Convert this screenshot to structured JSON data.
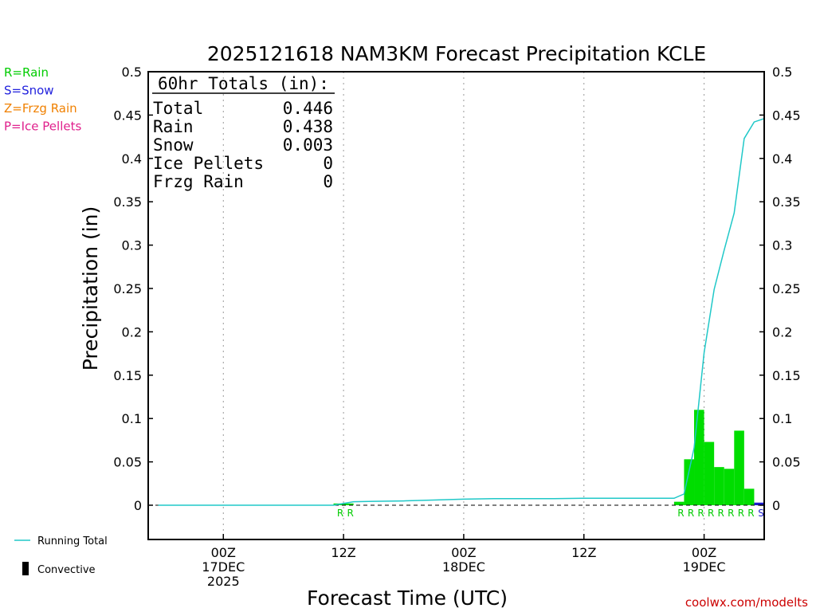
{
  "chart_data": {
    "type": "bar",
    "title": "2025121618 NAM3KM Forecast Precipitation KCLE",
    "xlabel": "Forecast Time (UTC)",
    "ylabel": "Precipitation (in)",
    "ylim": [
      -0.04,
      0.5
    ],
    "y_ticks": [
      0,
      0.05,
      0.1,
      0.15,
      0.2,
      0.25,
      0.3,
      0.35,
      0.4,
      0.45,
      0.5
    ],
    "y_tick_labels": [
      "0",
      "0.05",
      "0.1",
      "0.15",
      "0.2",
      "0.25",
      "0.3",
      "0.35",
      "0.4",
      "0.45",
      "0.5"
    ],
    "x_unit": "forecast hour",
    "xlim": [
      -1.5,
      60
    ],
    "x_ticks": [
      {
        "hour": 6,
        "lines": [
          "00Z",
          "17DEC",
          "2025"
        ]
      },
      {
        "hour": 18,
        "lines": [
          "12Z"
        ]
      },
      {
        "hour": 30,
        "lines": [
          "00Z",
          "18DEC"
        ]
      },
      {
        "hour": 42,
        "lines": [
          "12Z"
        ]
      },
      {
        "hour": 54,
        "lines": [
          "00Z",
          "19DEC"
        ]
      }
    ],
    "grid": "vertical dotted at x ticks",
    "series": [
      {
        "name": "Running Total",
        "kind": "line",
        "color": "#20c8c8",
        "x": [
          -0.5,
          17,
          18,
          19,
          21,
          24,
          27,
          30,
          33,
          36,
          39,
          42,
          45,
          48,
          51,
          52,
          53,
          54,
          55,
          56,
          57,
          58,
          59,
          60
        ],
        "y": [
          0,
          0,
          0.002,
          0.004,
          0.0045,
          0.005,
          0.006,
          0.007,
          0.0075,
          0.0075,
          0.0075,
          0.008,
          0.008,
          0.008,
          0.008,
          0.013,
          0.066,
          0.176,
          0.249,
          0.294,
          0.337,
          0.423,
          0.442,
          0.446
        ]
      },
      {
        "name": "Hourly Rain",
        "kind": "bar",
        "color": "#00dd00",
        "x": [
          18,
          19,
          52,
          53,
          54,
          55,
          56,
          57,
          58,
          59
        ],
        "values": [
          0.002,
          0.002,
          0.004,
          0.053,
          0.11,
          0.073,
          0.044,
          0.042,
          0.086,
          0.019
        ]
      },
      {
        "name": "Hourly Snow",
        "kind": "bar",
        "color": "#1b1bd0",
        "x": [
          60
        ],
        "values": [
          0.003
        ]
      }
    ],
    "type_markers": [
      {
        "hour": 18,
        "label": "R",
        "color": "#00cc00"
      },
      {
        "hour": 19,
        "label": "R",
        "color": "#00cc00"
      },
      {
        "hour": 52,
        "label": "R",
        "color": "#00cc00"
      },
      {
        "hour": 53,
        "label": "R",
        "color": "#00cc00"
      },
      {
        "hour": 54,
        "label": "R",
        "color": "#00cc00"
      },
      {
        "hour": 55,
        "label": "R",
        "color": "#00cc00"
      },
      {
        "hour": 56,
        "label": "R",
        "color": "#00cc00"
      },
      {
        "hour": 57,
        "label": "R",
        "color": "#00cc00"
      },
      {
        "hour": 58,
        "label": "R",
        "color": "#00cc00"
      },
      {
        "hour": 59,
        "label": "R",
        "color": "#00cc00"
      },
      {
        "hour": 60,
        "label": "S",
        "color": "#2222cc"
      }
    ],
    "totals_box": {
      "header": "60hr Totals (in):",
      "rows": [
        {
          "label": "Total",
          "value": "0.446"
        },
        {
          "label": "Rain",
          "value": "0.438"
        },
        {
          "label": "Snow",
          "value": "0.003"
        },
        {
          "label": "Ice Pellets",
          "value": "0"
        },
        {
          "label": "Frzg Rain",
          "value": "0"
        }
      ]
    },
    "type_legend": [
      {
        "text": "R=Rain",
        "color": "#00cc00"
      },
      {
        "text": "S=Snow",
        "color": "#2222dd"
      },
      {
        "text": "Z=Frzg Rain",
        "color": "#f08000"
      },
      {
        "text": "P=Ice Pellets",
        "color": "#e0208c"
      }
    ],
    "line_legend": [
      {
        "text": "Running Total",
        "symbol": "line",
        "color": "#20c8c8"
      },
      {
        "text": "Convective",
        "symbol": "bar",
        "color": "#000000"
      }
    ],
    "credit": {
      "text": "coolwx.com/modelts",
      "color": "#cc0000"
    }
  }
}
